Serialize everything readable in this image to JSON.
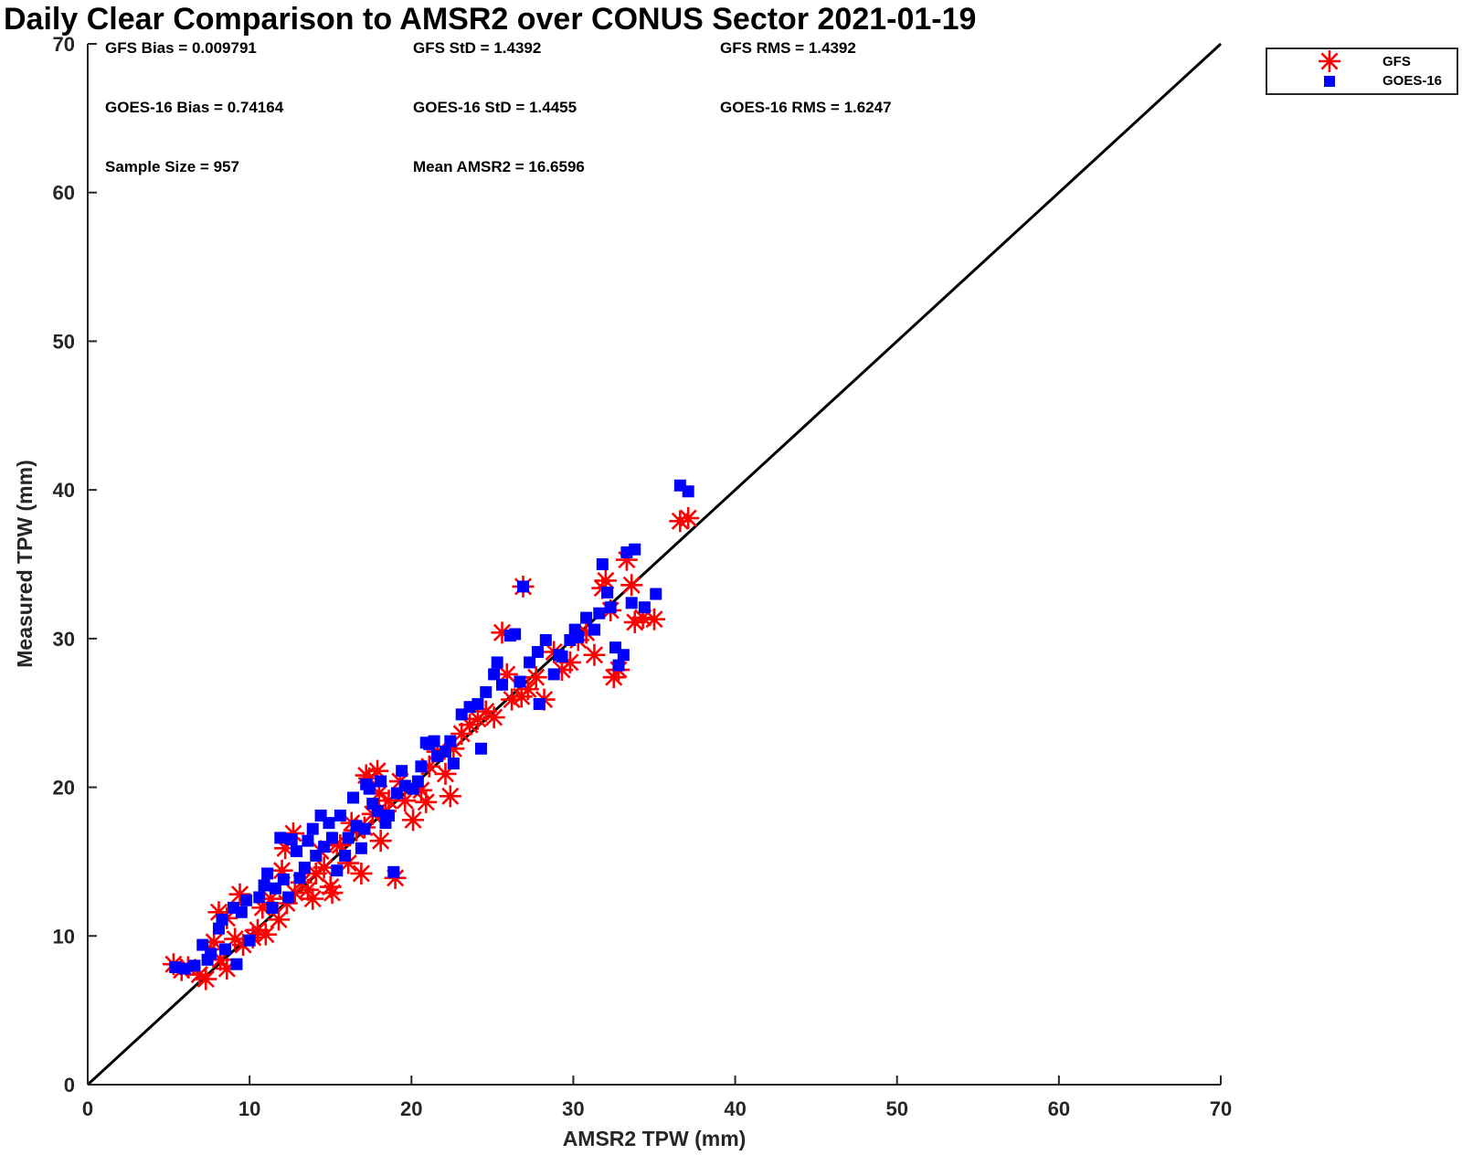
{
  "chart_data": {
    "type": "scatter",
    "title": "Daily Clear Comparison to AMSR2 over CONUS Sector 2021-01-19",
    "xlabel": "AMSR2 TPW (mm)",
    "ylabel": "Measured TPW (mm)",
    "xlim": [
      0,
      70
    ],
    "ylim": [
      0,
      70
    ],
    "xticks": [
      0,
      10,
      20,
      30,
      40,
      50,
      60,
      70
    ],
    "yticks": [
      0,
      10,
      20,
      30,
      40,
      50,
      60,
      70
    ],
    "grid": false,
    "reference_line": "y = x",
    "legend_position": "outside-top-right",
    "stats": [
      [
        "GFS Bias = 0.009791",
        "GFS StD = 1.4392",
        "GFS RMS = 1.4392"
      ],
      [
        "GOES-16 Bias = 0.74164",
        "GOES-16 StD = 1.4455",
        "GOES-16 RMS = 1.6247"
      ],
      [
        "Sample Size = 957",
        "Mean AMSR2 = 16.6596"
      ]
    ],
    "series": [
      {
        "name": "GFS",
        "marker": "asterisk",
        "color": "#ff0000",
        "x": [
          5.3,
          5.8,
          6.2,
          6.9,
          7.3,
          7.8,
          8.2,
          8.6,
          9.1,
          9.6,
          10.2,
          10.8,
          11.3,
          11.8,
          12.3,
          12.8,
          13.2,
          13.6,
          14.1,
          14.6,
          15.1,
          15.6,
          16.1,
          16.6,
          17.1,
          17.6,
          18.1,
          18.6,
          19.0,
          19.6,
          20.1,
          20.6,
          21.1,
          21.6,
          22.1,
          22.6,
          23.1,
          23.6,
          24.1,
          24.6,
          25.1,
          25.6,
          26.2,
          26.8,
          27.2,
          27.7,
          28.2,
          28.8,
          29.3,
          29.8,
          30.3,
          30.8,
          31.3,
          31.8,
          32.3,
          32.8,
          33.3,
          33.8,
          34.3,
          35.0,
          36.6,
          37.1,
          26.9,
          7.6,
          8.1,
          10.5,
          11.0,
          12.7,
          13.9,
          14.4,
          15.4,
          16.9,
          17.4,
          17.9,
          18.4,
          8.6,
          9.4,
          12.2,
          15.0,
          16.3,
          19.3,
          20.9,
          22.4,
          25.9,
          32.0,
          32.5,
          33.6,
          17.2,
          18.0,
          12.0
        ],
        "y": [
          8.1,
          7.7,
          7.9,
          7.4,
          7.1,
          9.6,
          8.4,
          7.8,
          9.8,
          9.4,
          9.9,
          11.9,
          12.5,
          11.1,
          12.2,
          12.9,
          13.6,
          13.1,
          14.2,
          14.6,
          12.9,
          16.1,
          14.9,
          17.1,
          17.3,
          18.2,
          16.4,
          19.1,
          13.9,
          19.1,
          17.8,
          19.8,
          21.4,
          22.4,
          20.9,
          22.6,
          23.6,
          24.2,
          24.6,
          25.1,
          24.7,
          30.4,
          25.9,
          26.1,
          26.6,
          27.4,
          25.9,
          29.1,
          27.9,
          28.4,
          29.9,
          30.4,
          28.9,
          33.4,
          31.9,
          27.9,
          35.3,
          31.1,
          31.4,
          31.3,
          37.9,
          38.1,
          33.5,
          9.1,
          11.6,
          10.4,
          10.1,
          16.9,
          12.5,
          15.7,
          16.2,
          14.2,
          20.6,
          21.1,
          18.4,
          11.2,
          12.8,
          15.9,
          13.3,
          17.6,
          20.4,
          19.0,
          19.4,
          27.6,
          33.9,
          27.4,
          33.6,
          20.8,
          19.6,
          14.4
        ]
      },
      {
        "name": "GOES-16",
        "marker": "square",
        "color": "#0000ff",
        "x": [
          5.4,
          6.0,
          6.6,
          7.1,
          7.6,
          8.1,
          8.5,
          9.0,
          9.5,
          10.0,
          10.6,
          11.1,
          11.6,
          12.1,
          12.6,
          13.1,
          13.6,
          14.1,
          14.6,
          15.1,
          15.6,
          16.1,
          16.6,
          17.1,
          17.6,
          18.1,
          18.6,
          19.1,
          19.6,
          20.1,
          20.6,
          21.1,
          21.6,
          22.1,
          22.6,
          23.1,
          23.6,
          24.1,
          24.6,
          25.1,
          25.6,
          26.1,
          26.7,
          27.3,
          27.8,
          28.3,
          28.8,
          29.3,
          29.8,
          30.3,
          30.8,
          31.3,
          31.8,
          32.3,
          32.8,
          33.3,
          33.8,
          34.4,
          36.6,
          37.1,
          26.9,
          18.9,
          7.4,
          8.3,
          9.2,
          10.9,
          11.4,
          12.4,
          12.9,
          13.4,
          13.9,
          14.4,
          15.4,
          15.9,
          16.4,
          16.9,
          17.4,
          17.9,
          18.4,
          19.4,
          20.4,
          21.4,
          22.4,
          24.3,
          25.3,
          26.4,
          27.9,
          29.1,
          30.1,
          31.6,
          32.1,
          32.6,
          33.1,
          33.6,
          35.1,
          9.8,
          11.9,
          14.9,
          17.2,
          20.9
        ],
        "y": [
          7.9,
          7.8,
          8.0,
          9.4,
          8.8,
          10.5,
          9.1,
          11.9,
          11.6,
          9.7,
          12.6,
          14.2,
          13.2,
          13.8,
          16.5,
          13.9,
          16.4,
          15.4,
          16.0,
          16.6,
          18.1,
          16.6,
          17.4,
          17.2,
          18.9,
          20.4,
          18.1,
          19.6,
          20.1,
          19.9,
          21.4,
          22.9,
          22.1,
          22.4,
          21.6,
          24.9,
          25.4,
          25.6,
          26.4,
          27.6,
          26.9,
          30.2,
          27.1,
          28.4,
          29.1,
          29.9,
          27.6,
          28.8,
          29.9,
          30.1,
          31.4,
          30.6,
          35.0,
          32.1,
          28.2,
          35.8,
          36.0,
          32.1,
          40.3,
          39.9,
          33.5,
          14.3,
          8.4,
          11.1,
          8.1,
          13.4,
          11.9,
          12.6,
          15.7,
          14.6,
          17.2,
          18.1,
          14.4,
          15.4,
          19.3,
          15.9,
          19.9,
          18.4,
          17.6,
          21.1,
          20.4,
          23.1,
          23.1,
          22.6,
          28.4,
          30.3,
          25.6,
          28.9,
          30.6,
          31.7,
          33.1,
          29.4,
          28.9,
          32.4,
          33.0,
          12.4,
          16.6,
          17.6,
          20.2,
          23.0
        ]
      }
    ]
  }
}
